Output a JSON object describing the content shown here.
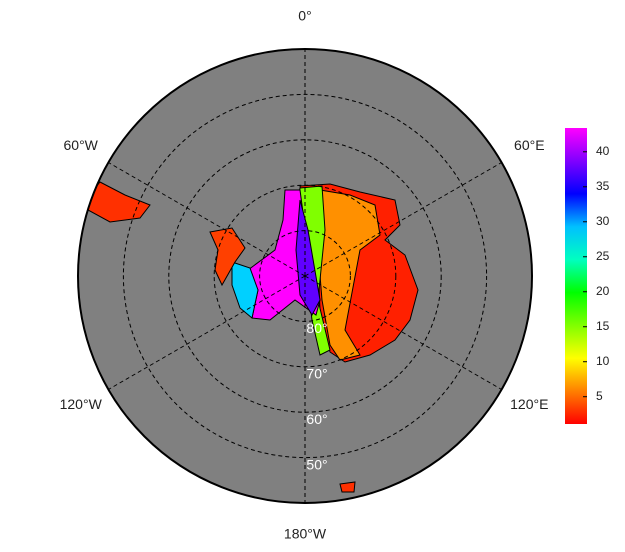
{
  "chart_data": {
    "type": "polar-map",
    "lon_labels": [
      {
        "value": 0,
        "label": "0°"
      },
      {
        "value": 60,
        "label": "60°E"
      },
      {
        "value": 120,
        "label": "120°E"
      },
      {
        "value": 180,
        "label": "180°W"
      },
      {
        "value": 240,
        "label": "120°W"
      },
      {
        "value": 300,
        "label": "60°W"
      }
    ],
    "lat_labels": [
      {
        "value": 80,
        "label": "80°"
      },
      {
        "value": 70,
        "label": "70°"
      },
      {
        "value": 60,
        "label": "60°"
      },
      {
        "value": 50,
        "label": "50°"
      }
    ],
    "rlim": [
      90,
      40
    ],
    "background": "#808080",
    "colorbar_lim": [
      1.1,
      43.4
    ],
    "colorbar_ticks": [
      5,
      10,
      15,
      20,
      25,
      30,
      35,
      40
    ],
    "colormap": [
      "#ff0000",
      "#ff8000",
      "#ffff00",
      "#80ff00",
      "#00ff00",
      "#00ffc0",
      "#00c0ff",
      "#0000ff",
      "#8000ff",
      "#ff00ff"
    ]
  }
}
